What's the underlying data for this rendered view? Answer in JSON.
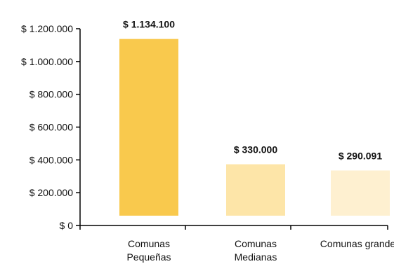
{
  "chart_data": {
    "type": "bar",
    "categories": [
      [
        "Comunas",
        "Pequeñas"
      ],
      [
        "Comunas",
        "Medianas"
      ],
      [
        "Comunas grandes"
      ]
    ],
    "values": [
      1134100,
      330000,
      290091
    ],
    "data_labels": [
      "$ 1.134.100",
      "$ 330.000",
      "$ 290.091"
    ],
    "bar_colors": [
      "#F9C94D",
      "#FDE5A8",
      "#FEF0D0"
    ],
    "y_ticks": [
      0,
      200000,
      400000,
      600000,
      800000,
      1000000,
      1200000
    ],
    "y_tick_labels": [
      "$ 0",
      "$ 200.000",
      "$ 400.000",
      "$ 600.000",
      "$ 800.000",
      "$ 1.000.000",
      "$ 1.200.000"
    ],
    "ylim": [
      0,
      1200000
    ],
    "grid": false,
    "legend": "none"
  }
}
